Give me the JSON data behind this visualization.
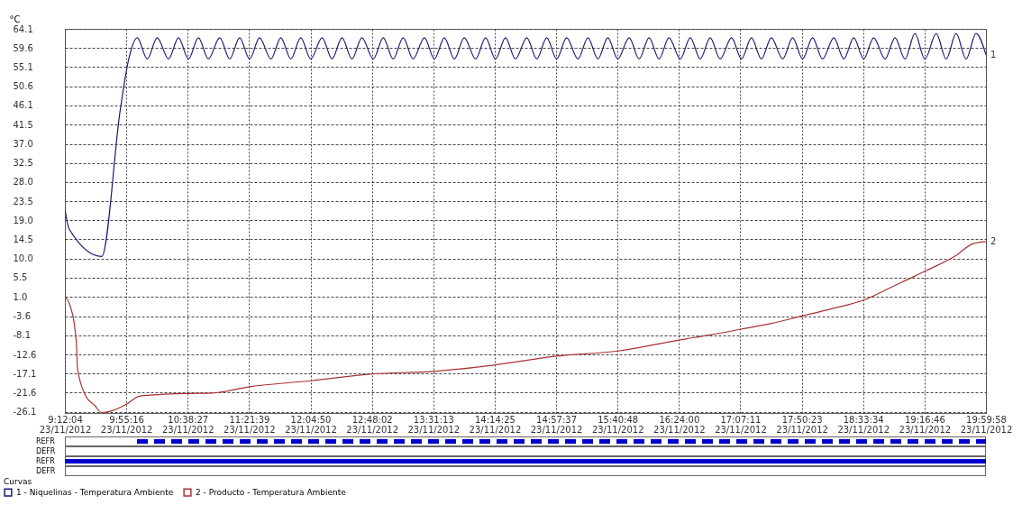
{
  "chart_data": {
    "type": "line",
    "ylabel": "°C",
    "legend_title": "Curvas",
    "legend": "bottom left",
    "grid": true,
    "line_style": "solid",
    "xlim": [
      "2012-11-23T09:12:04",
      "2012-11-23T19:59:58"
    ],
    "ylim": [
      -26.4,
      64.1
    ],
    "xticks": [
      {
        "value": "2012-11-23T09:12:04",
        "label": "9:12:04\n23/11/2012"
      },
      {
        "value": "2012-11-23T09:55:16",
        "label": "9:55:16\n23/11/2012"
      },
      {
        "value": "2012-11-23T10:38:27",
        "label": "10:38:27\n23/11/2012"
      },
      {
        "value": "2012-11-23T11:21:39",
        "label": "11:21:39\n23/11/2012"
      },
      {
        "value": "2012-11-23T12:04:50",
        "label": "12:04:50\n23/11/2012"
      },
      {
        "value": "2012-11-23T12:48:02",
        "label": "12:48:02\n23/11/2012"
      },
      {
        "value": "2012-11-23T13:31:13",
        "label": "13:31:13\n23/11/2012"
      },
      {
        "value": "2012-11-23T14:14:25",
        "label": "14:14:25\n23/11/2012"
      },
      {
        "value": "2012-11-23T14:57:37",
        "label": "14:57:37\n23/11/2012"
      },
      {
        "value": "2012-11-23T15:40:48",
        "label": "15:40:48\n23/11/2012"
      },
      {
        "value": "2012-11-23T16:24:00",
        "label": "16:24:00\n23/11/2012"
      },
      {
        "value": "2012-11-23T17:07:11",
        "label": "17:07:11\n23/11/2012"
      },
      {
        "value": "2012-11-23T17:50:23",
        "label": "17:50:23\n23/11/2012"
      },
      {
        "value": "2012-11-23T18:33:34",
        "label": "18:33:34\n23/11/2012"
      },
      {
        "value": "2012-11-23T19:16:46",
        "label": "19:16:46\n23/11/2012"
      },
      {
        "value": "2012-11-23T19:59:58",
        "label": "19:59:58\n23/11/2012"
      }
    ],
    "yticks": [
      {
        "value": -26.1,
        "label": "-26.1"
      },
      -21.6,
      -17.1,
      -12.6,
      -8.1,
      -3.6,
      {
        "value": 1.0,
        "label": "1.0"
      },
      5.5,
      {
        "value": 10.0,
        "label": "10.0"
      },
      14.5,
      {
        "value": 19.0,
        "label": "19.0"
      },
      23.5,
      {
        "value": 28.0,
        "label": "28.0"
      },
      32.5,
      {
        "value": 37.0,
        "label": "37.0"
      },
      41.5,
      46.1,
      50.6,
      55.1,
      59.6,
      64.1
    ],
    "series": [
      {
        "name": "1 - Niquelinas - Temperatura Ambiente",
        "color": "#1c1c78",
        "x": [
          "2012-11-23T09:12:04",
          "2012-11-23T09:15",
          "2012-11-23T09:38",
          "2012-11-23T09:51",
          "2012-11-23T09:57",
          "2012-11-23T10:03",
          "2012-11-23T10:10",
          "2012-11-23T10:17",
          "2012-11-23T10:25",
          "2012-11-23T10:32",
          "2012-11-23T10:39",
          "2012-11-23T10:46",
          "2012-11-23T10:53",
          "2012-11-23T11:01",
          "2012-11-23T11:08",
          "2012-11-23T11:15",
          "2012-11-23T11:22",
          "2012-11-23T11:29",
          "2012-11-23T11:37",
          "2012-11-23T11:44",
          "2012-11-23T11:51",
          "2012-11-23T11:58",
          "2012-11-23T12:05",
          "2012-11-23T12:13",
          "2012-11-23T12:20",
          "2012-11-23T12:27",
          "2012-11-23T12:34",
          "2012-11-23T12:41",
          "2012-11-23T12:49",
          "2012-11-23T12:56",
          "2012-11-23T13:03",
          "2012-11-23T13:10",
          "2012-11-23T13:17",
          "2012-11-23T13:25",
          "2012-11-23T13:32",
          "2012-11-23T13:39",
          "2012-11-23T13:46",
          "2012-11-23T13:53",
          "2012-11-23T14:01",
          "2012-11-23T14:08",
          "2012-11-23T14:15",
          "2012-11-23T14:22",
          "2012-11-23T14:29",
          "2012-11-23T14:37",
          "2012-11-23T14:44",
          "2012-11-23T14:51",
          "2012-11-23T14:58",
          "2012-11-23T15:05",
          "2012-11-23T15:13",
          "2012-11-23T15:20",
          "2012-11-23T15:27",
          "2012-11-23T15:34",
          "2012-11-23T15:41",
          "2012-11-23T15:49",
          "2012-11-23T15:56",
          "2012-11-23T16:03",
          "2012-11-23T16:10",
          "2012-11-23T16:17",
          "2012-11-23T16:25",
          "2012-11-23T16:32",
          "2012-11-23T16:39",
          "2012-11-23T16:46",
          "2012-11-23T16:53",
          "2012-11-23T17:01",
          "2012-11-23T17:08",
          "2012-11-23T17:15",
          "2012-11-23T17:22",
          "2012-11-23T17:29",
          "2012-11-23T17:37",
          "2012-11-23T17:44",
          "2012-11-23T17:51",
          "2012-11-23T17:58",
          "2012-11-23T18:05",
          "2012-11-23T18:13",
          "2012-11-23T18:20",
          "2012-11-23T18:27",
          "2012-11-23T18:34",
          "2012-11-23T18:41",
          "2012-11-23T18:49",
          "2012-11-23T18:56",
          "2012-11-23T19:03",
          "2012-11-23T19:10",
          "2012-11-23T19:17",
          "2012-11-23T19:25",
          "2012-11-23T19:32",
          "2012-11-23T19:39",
          "2012-11-23T19:46",
          "2012-11-23T19:53",
          "2012-11-23T19:59:58"
        ],
        "values": [
          21.7,
          17.0,
          10.5,
          45,
          57,
          62,
          57,
          62,
          57,
          62,
          57,
          62,
          57,
          62,
          57,
          62,
          57,
          62,
          57,
          62,
          57,
          62,
          57,
          62,
          57,
          62,
          57,
          62,
          57,
          62,
          57,
          62,
          57,
          62,
          57,
          62,
          57,
          62,
          57,
          62,
          57,
          62,
          57,
          62,
          57,
          62,
          57,
          62,
          57,
          62,
          57,
          62,
          57,
          62,
          57,
          62,
          57,
          62,
          57,
          62,
          57,
          62,
          57,
          62,
          57,
          62,
          57,
          62,
          57,
          62,
          57,
          62,
          57,
          62,
          57,
          62,
          57,
          62,
          57,
          62,
          57,
          63,
          57,
          63,
          57,
          63,
          57,
          63,
          58
        ]
      },
      {
        "name": "2 - Producto - Temperatura Ambiente",
        "color": "#a83232",
        "x": [
          "2012-11-23T09:12:04",
          "2012-11-23T09:15",
          "2012-11-23T09:20",
          "2012-11-23T09:21",
          "2012-11-23T09:27",
          "2012-11-23T09:33",
          "2012-11-23T09:38",
          "2012-11-23T09:44",
          "2012-11-23T09:55",
          "2012-11-23T10:05",
          "2012-11-23T10:38",
          "2012-11-23T10:56",
          "2012-11-23T11:22",
          "2012-11-23T12:05",
          "2012-11-23T12:48",
          "2012-11-23T13:31",
          "2012-11-23T14:14",
          "2012-11-23T14:58",
          "2012-11-23T15:41",
          "2012-11-23T16:24",
          "2012-11-23T16:46",
          "2012-11-23T17:07",
          "2012-11-23T17:29",
          "2012-11-23T17:50",
          "2012-11-23T18:12",
          "2012-11-23T18:34",
          "2012-11-23T18:55",
          "2012-11-23T19:17",
          "2012-11-23T19:38",
          "2012-11-23T19:51",
          "2012-11-23T19:59:58"
        ],
        "values": [
          1.0,
          -0.4,
          -9.2,
          -16.1,
          -22.5,
          -24.6,
          -26.3,
          -26.0,
          -24.4,
          -22.4,
          -21.8,
          -21.7,
          -20.2,
          -18.8,
          -17.2,
          -16.6,
          -15.1,
          -13.0,
          -11.8,
          -9.2,
          -8.0,
          -6.7,
          -5.3,
          -3.6,
          -1.8,
          0.2,
          3.5,
          7.0,
          10.5,
          13.5,
          14.0
        ]
      }
    ],
    "annotations": [
      {
        "text": "1",
        "x": "2012-11-23T19:59:58",
        "y": 58
      },
      {
        "text": "2",
        "x": "2012-11-23T19:59:58",
        "y": 14.0
      },
      "REFR",
      "DEFR",
      "REFR",
      "DEFR"
    ]
  }
}
